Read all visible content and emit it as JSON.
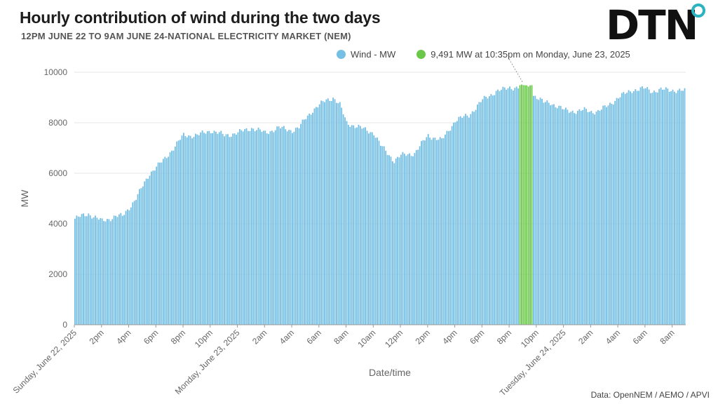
{
  "header": {
    "title": "Hourly contribution of wind during the two days",
    "subtitle": "12PM JUNE 22 TO 9AM JUNE 24-NATIONAL ELECTRICITY MARKET (NEM)"
  },
  "logo": {
    "text": "DTN",
    "icon": "dtn-logo"
  },
  "legend": [
    {
      "label": "Wind - MW",
      "color": "#74bfe3"
    },
    {
      "label": "9,491 MW at 10:35pm on Monday, June 23, 2025",
      "color": "#69c84a"
    }
  ],
  "source": "Data: OpenNEM / AEMO /  APVI",
  "chart_data": {
    "type": "bar",
    "xlabel": "Date/time",
    "ylabel": "MW",
    "ylim": [
      0,
      10000
    ],
    "yticks": [
      0,
      2000,
      4000,
      6000,
      8000,
      10000
    ],
    "grid": true,
    "legend_position": "top",
    "x_tick_labels": [
      "Sunday, June 22, 2025",
      "2pm",
      "4pm",
      "6pm",
      "8pm",
      "10pm",
      "Monday, June 23, 2025",
      "2am",
      "4am",
      "6am",
      "8am",
      "10am",
      "12pm",
      "2pm",
      "4pm",
      "6pm",
      "8pm",
      "10pm",
      "Tuesday, June 24, 2025",
      "2am",
      "4am",
      "6am",
      "8am"
    ],
    "series": [
      {
        "name": "Wind - MW",
        "color": "#74bfe3",
        "x_hours": [
          0,
          1,
          2,
          3,
          3.5,
          4.5,
          5.5,
          6.5,
          8,
          9,
          10,
          11,
          12,
          13,
          14,
          15,
          16,
          16.5,
          17,
          17.5,
          18,
          18.5,
          19,
          19.5,
          20,
          21,
          22,
          22.5,
          23.5,
          24,
          25,
          26,
          27,
          28,
          29,
          30,
          31,
          31.5,
          32,
          33,
          33.5,
          34,
          34.5,
          35,
          36,
          37,
          37.5,
          38,
          38.5,
          39,
          40,
          41,
          42,
          42.5,
          43,
          44,
          45
        ],
        "values": [
          4200,
          4400,
          4100,
          4300,
          4300,
          5000,
          6000,
          6500,
          7500,
          7500,
          7700,
          7500,
          7600,
          7800,
          7600,
          7800,
          7700,
          7800,
          8200,
          8500,
          8700,
          8900,
          9000,
          8700,
          8000,
          7800,
          7600,
          7100,
          6500,
          6700,
          6800,
          7500,
          7300,
          8100,
          8300,
          8900,
          9250,
          9300,
          9400,
          9400,
          9200,
          9000,
          8800,
          8800,
          8500,
          8450,
          8500,
          8450,
          8450,
          8600,
          9000,
          9300,
          9350,
          9250,
          9300,
          9300,
          9250
        ]
      }
    ],
    "highlight": {
      "start_hour": 32.7,
      "end_hour": 33.7,
      "peak_value": 9491,
      "label": "9,491 MW at 10:35pm on Monday, June 23, 2025",
      "color": "#69c84a"
    }
  }
}
